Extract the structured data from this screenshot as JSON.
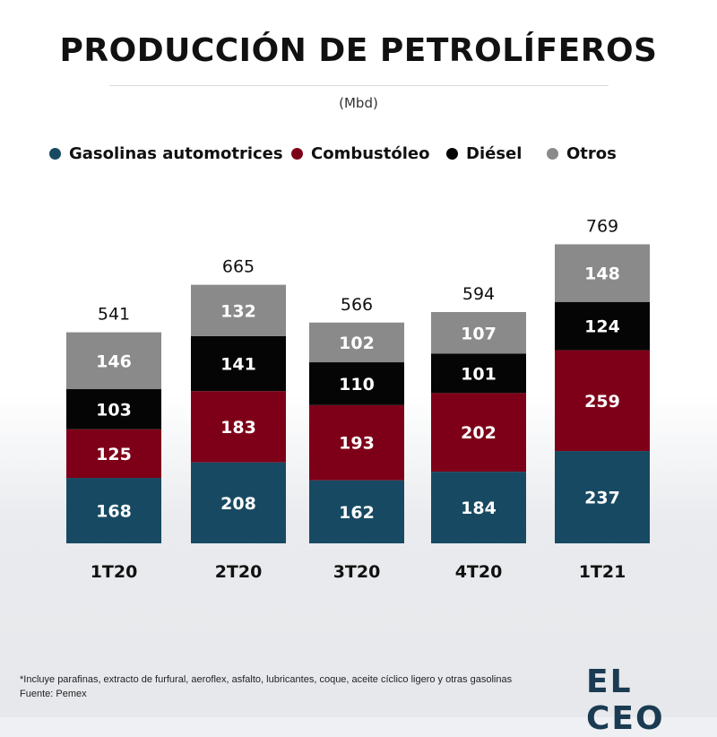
{
  "header": {
    "title": "PRODUCCIÓN DE PETROLÍFEROS",
    "unit": "(Mbd)"
  },
  "colors": {
    "gasolinas": "#174a62",
    "combustoleo": "#7e0018",
    "diesel": "#050505",
    "otros": "#8a8a8a"
  },
  "footer": {
    "note": "*Incluye parafinas, extracto de furfural, aeroflex, asfalto, lubricantes, coque, aceite cíclico ligero y otras gasolinas",
    "source": "Fuente: Pemex",
    "logo": "EL CEO"
  },
  "chart_data": {
    "type": "bar",
    "stacked": true,
    "categories": [
      "1T20",
      "2T20",
      "3T20",
      "4T20",
      "1T21"
    ],
    "series": [
      {
        "name": "Gasolinas automotrices",
        "color": "#174a62",
        "values": [
          168,
          208,
          162,
          184,
          237
        ]
      },
      {
        "name": "Combustóleo",
        "color": "#7e0018",
        "values": [
          125,
          183,
          193,
          202,
          259
        ]
      },
      {
        "name": "Diésel",
        "color": "#050505",
        "values": [
          103,
          141,
          110,
          101,
          124
        ]
      },
      {
        "name": "Otros",
        "color": "#8a8a8a",
        "values": [
          146,
          132,
          102,
          107,
          148
        ]
      }
    ],
    "totals": [
      541,
      665,
      566,
      594,
      769
    ],
    "title": "PRODUCCIÓN DE PETROLÍFEROS",
    "ylabel": "(Mbd)",
    "legend_position": "top",
    "grid": false
  }
}
